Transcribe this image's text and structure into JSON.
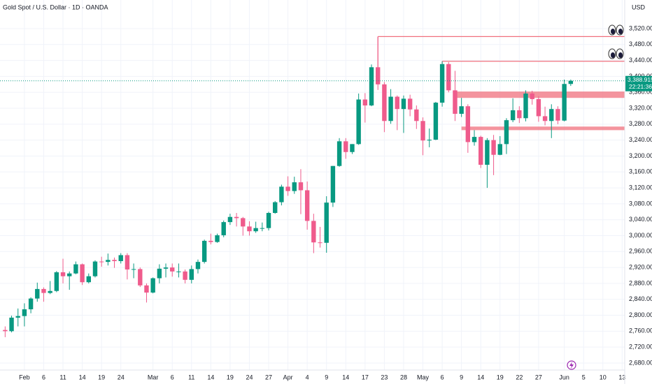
{
  "chart_data": {
    "type": "candlestick",
    "title": "Gold Spot / U.S. Dollar · 1D · OANDA",
    "currency": "USD",
    "up_color": "#089981",
    "down_color": "#ef5b8c",
    "level_color": "#f0707e",
    "grid": true,
    "xlim": [
      -0.8,
      96.4
    ],
    "ylim": [
      2662.4,
      3591.9
    ],
    "xticks": [
      {
        "value": 3,
        "label": "Feb"
      },
      {
        "value": 6,
        "label": "6"
      },
      {
        "value": 9,
        "label": "11"
      },
      {
        "value": 12,
        "label": "14"
      },
      {
        "value": 15,
        "label": "19"
      },
      {
        "value": 18,
        "label": "24"
      },
      {
        "value": 23,
        "label": "Mar"
      },
      {
        "value": 26,
        "label": "6"
      },
      {
        "value": 29,
        "label": "11"
      },
      {
        "value": 32,
        "label": "14"
      },
      {
        "value": 35,
        "label": "19"
      },
      {
        "value": 38,
        "label": "24"
      },
      {
        "value": 41,
        "label": "27"
      },
      {
        "value": 44,
        "label": "Apr"
      },
      {
        "value": 47,
        "label": "4"
      },
      {
        "value": 50,
        "label": "9"
      },
      {
        "value": 53,
        "label": "14"
      },
      {
        "value": 56,
        "label": "17"
      },
      {
        "value": 59,
        "label": "23"
      },
      {
        "value": 62,
        "label": "28"
      },
      {
        "value": 65,
        "label": "May"
      },
      {
        "value": 68,
        "label": "6"
      },
      {
        "value": 71,
        "label": "9"
      },
      {
        "value": 74,
        "label": "14"
      },
      {
        "value": 77,
        "label": "19"
      },
      {
        "value": 80,
        "label": "22"
      },
      {
        "value": 83,
        "label": "27"
      },
      {
        "value": 87,
        "label": "Jun"
      },
      {
        "value": 90,
        "label": "5"
      },
      {
        "value": 93,
        "label": "10"
      },
      {
        "value": 96,
        "label": "13"
      }
    ],
    "yticks": [
      {
        "value": 2680,
        "label": "2,680.000"
      },
      {
        "value": 2720,
        "label": "2,720.000"
      },
      {
        "value": 2760,
        "label": "2,760.000"
      },
      {
        "value": 2800,
        "label": "2,800.000"
      },
      {
        "value": 2840,
        "label": "2,840.000"
      },
      {
        "value": 2880,
        "label": "2,880.000"
      },
      {
        "value": 2920,
        "label": "2,920.000"
      },
      {
        "value": 2960,
        "label": "2,960.000"
      },
      {
        "value": 3000,
        "label": "3,000.000"
      },
      {
        "value": 3040,
        "label": "3,040.000"
      },
      {
        "value": 3080,
        "label": "3,080.000"
      },
      {
        "value": 3120,
        "label": "3,120.000"
      },
      {
        "value": 3160,
        "label": "3,160.000"
      },
      {
        "value": 3200,
        "label": "3,200.000"
      },
      {
        "value": 3240,
        "label": "3,240.000"
      },
      {
        "value": 3280,
        "label": "3,280.000"
      },
      {
        "value": 3320,
        "label": "3,320.000"
      },
      {
        "value": 3360,
        "label": "3,360.000"
      },
      {
        "value": 3400,
        "label": "3,400.000"
      },
      {
        "value": 3440,
        "label": "3,440.000"
      },
      {
        "value": 3480,
        "label": "3,480.000"
      },
      {
        "value": 3520,
        "label": "3,520.000"
      }
    ],
    "open": [
      2763,
      2760,
      2794,
      2798,
      2815,
      2842,
      2866,
      2856,
      2861,
      2908,
      2898,
      2905,
      2928,
      2883,
      2898,
      2935,
      2934,
      2939,
      2936,
      2951,
      2915,
      2916,
      2875,
      2857,
      2893,
      2917,
      2920,
      2910,
      2910,
      2889,
      2916,
      2934,
      2987,
      2984,
      3001,
      3034,
      3047,
      3044,
      3023,
      3011,
      3019,
      3019,
      3057,
      3084,
      3123,
      3112,
      3134,
      3114,
      3037,
      2983,
      2982,
      3083,
      3175,
      3237,
      3210,
      3230,
      3342,
      3327,
      3423,
      3380,
      3288,
      3349,
      3318,
      3344,
      3317,
      3288,
      3239,
      3241,
      3334,
      3431,
      3365,
      3306,
      3325,
      3235,
      3248,
      3178,
      3240,
      3203,
      3230,
      3290,
      3315,
      3295,
      3357,
      3343,
      3300,
      3288,
      3318,
      3289,
      3381
    ],
    "high": [
      2772,
      2799,
      2817,
      2830,
      2845,
      2882,
      2870,
      2886,
      2911,
      2942,
      2910,
      2935,
      2930,
      2905,
      2938,
      2947,
      2955,
      2945,
      2956,
      2956,
      2930,
      2920,
      2880,
      2895,
      2928,
      2930,
      2930,
      2930,
      2915,
      2925,
      2940,
      2990,
      3005,
      3005,
      3038,
      3055,
      3057,
      3047,
      3036,
      3035,
      3033,
      3060,
      3087,
      3128,
      3149,
      3148,
      3167,
      3136,
      3055,
      3022,
      3099,
      3175,
      3245,
      3245,
      3230,
      3357,
      3358,
      3430,
      3500,
      3386,
      3368,
      3352,
      3352,
      3354,
      3327,
      3297,
      3269,
      3336,
      3438,
      3436,
      3414,
      3346,
      3330,
      3265,
      3251,
      3245,
      3253,
      3250,
      3295,
      3345,
      3325,
      3365,
      3364,
      3350,
      3324,
      3330,
      3325,
      3392,
      3392
    ],
    "low": [
      2745,
      2757,
      2772,
      2772,
      2805,
      2834,
      2834,
      2853,
      2858,
      2880,
      2864,
      2903,
      2876,
      2880,
      2895,
      2922,
      2925,
      2919,
      2930,
      2890,
      2893,
      2871,
      2832,
      2855,
      2880,
      2895,
      2897,
      2895,
      2880,
      2880,
      2905,
      2930,
      2978,
      2982,
      2996,
      3027,
      3023,
      3000,
      3000,
      3007,
      3011,
      3013,
      3055,
      3076,
      3100,
      3105,
      3054,
      3015,
      2956,
      2970,
      2957,
      3072,
      3173,
      3193,
      3205,
      3228,
      3284,
      3325,
      3366,
      3260,
      3281,
      3265,
      3258,
      3300,
      3268,
      3202,
      3222,
      3240,
      3324,
      3360,
      3288,
      3298,
      3208,
      3226,
      3170,
      3120,
      3152,
      3202,
      3205,
      3285,
      3283,
      3287,
      3329,
      3286,
      3277,
      3245,
      3280,
      3287,
      3376
    ],
    "close": [
      2760,
      2794,
      2798,
      2815,
      2842,
      2866,
      2856,
      2861,
      2908,
      2898,
      2905,
      2928,
      2883,
      2898,
      2935,
      2934,
      2939,
      2936,
      2951,
      2915,
      2916,
      2875,
      2857,
      2893,
      2917,
      2920,
      2910,
      2910,
      2889,
      2916,
      2934,
      2987,
      2984,
      3001,
      3034,
      3047,
      3044,
      3023,
      3011,
      3019,
      3019,
      3057,
      3084,
      3123,
      3112,
      3134,
      3114,
      3037,
      2983,
      2982,
      3083,
      3175,
      3237,
      3210,
      3230,
      3342,
      3327,
      3423,
      3380,
      3288,
      3349,
      3318,
      3344,
      3317,
      3288,
      3239,
      3241,
      3334,
      3431,
      3365,
      3306,
      3325,
      3235,
      3248,
      3178,
      3240,
      3203,
      3230,
      3290,
      3315,
      3295,
      3357,
      3343,
      3300,
      3288,
      3318,
      3289,
      3381,
      3388.915
    ],
    "levels": [
      {
        "value": 3500,
        "start": 58
      },
      {
        "value": 3438,
        "start": 68
      }
    ],
    "zones": [
      {
        "from": 3346,
        "to": 3362,
        "start": 70
      },
      {
        "from": 3265,
        "to": 3274,
        "start": 71
      }
    ],
    "last_price": {
      "value": 3388.915,
      "label": "3,388.915"
    },
    "countdown": "22:21:36"
  }
}
